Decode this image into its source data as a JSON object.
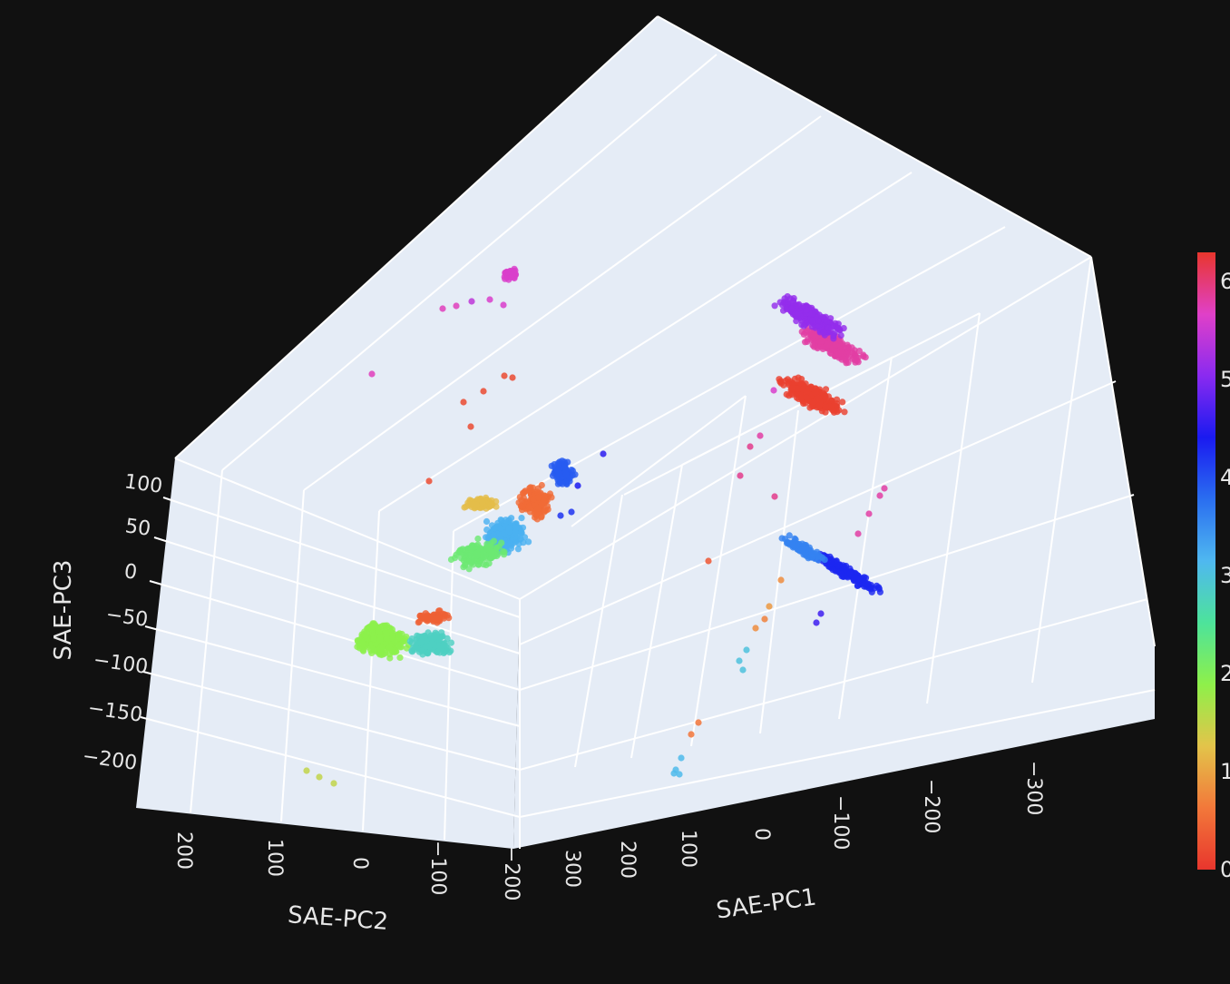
{
  "chart_data": {
    "type": "scatter3d",
    "background": "#111111",
    "scene_background": "#e5ecf6",
    "axes": {
      "x": {
        "title": "SAE-PC1",
        "tick_labels": [
          "300",
          "200",
          "100",
          "0",
          "−100",
          "−200",
          "−300"
        ]
      },
      "y": {
        "title": "SAE-PC2",
        "tick_labels": [
          "200",
          "100",
          "0",
          "−100",
          "−200"
        ]
      },
      "z": {
        "title": "SAE-PC3",
        "tick_labels": [
          "100",
          "50",
          "0",
          "−50",
          "−100",
          "−150",
          "−200"
        ]
      }
    },
    "colorbar": {
      "colorscale": [
        "#e8362d",
        "#f2783a",
        "#e3c44a",
        "#8ef04a",
        "#4de39b",
        "#4fb8f0",
        "#2a6ef0",
        "#1a1af0",
        "#8a2af0",
        "#e040c8",
        "#e8362d"
      ],
      "cmin": 0,
      "cmax": 6.28,
      "tick_labels": [
        "6",
        "5",
        "4",
        "3",
        "2",
        "1",
        "0"
      ]
    },
    "clusters": [
      {
        "id": "upper-right-pink",
        "color_value": 5.8,
        "count": 220
      },
      {
        "id": "upper-right-purple",
        "color_value": 5.1,
        "count": 200
      },
      {
        "id": "upper-right-red",
        "color_value": 0.1,
        "count": 260
      },
      {
        "id": "mid-right-blue",
        "color_value": 4.3,
        "count": 180
      },
      {
        "id": "mid-right-lightblue",
        "color_value": 3.6,
        "count": 120
      },
      {
        "id": "center-orange",
        "color_value": 0.5,
        "count": 150
      },
      {
        "id": "center-yellow",
        "color_value": 1.2,
        "count": 90
      },
      {
        "id": "center-cyan",
        "color_value": 3.2,
        "count": 260
      },
      {
        "id": "center-green",
        "color_value": 2.2,
        "count": 160
      },
      {
        "id": "center-blue",
        "color_value": 3.9,
        "count": 110
      },
      {
        "id": "lower-left-yellowgreen",
        "color_value": 1.9,
        "count": 300
      },
      {
        "id": "lower-left-teal",
        "color_value": 2.8,
        "count": 180
      },
      {
        "id": "lower-left-red",
        "color_value": 0.4,
        "count": 60
      },
      {
        "id": "top-magenta",
        "color_value": 5.6,
        "count": 40
      }
    ]
  }
}
